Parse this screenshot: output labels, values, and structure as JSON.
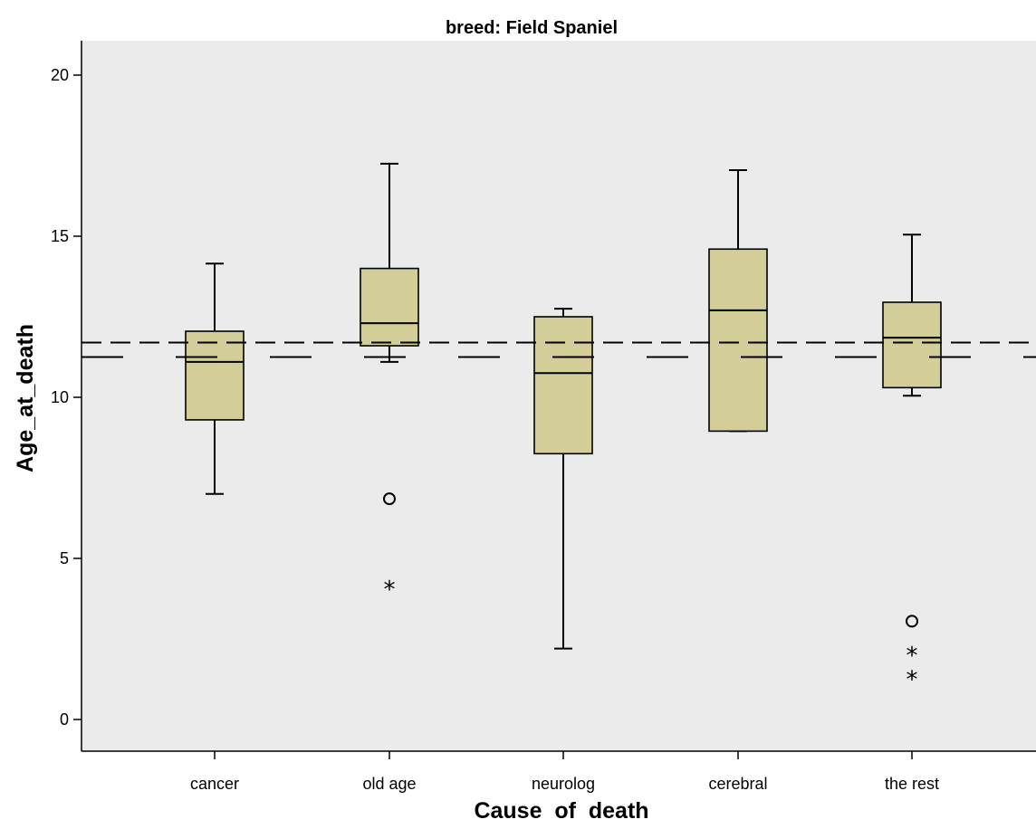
{
  "chart_data": {
    "type": "boxplot",
    "title": "breed: Field Spaniel",
    "xlabel": "Cause  of  death",
    "ylabel": "Age_at_death",
    "ylim": [
      -1,
      21
    ],
    "yticks": [
      0,
      5,
      10,
      15,
      20
    ],
    "grid": false,
    "colors": {
      "box_fill": "#d3cd98",
      "plot_bg": "#ebebeb",
      "line": "#000000"
    },
    "categories": [
      "cancer",
      "old age",
      "neurolog",
      "cerebral",
      "the rest"
    ],
    "boxes": [
      {
        "category": "cancer",
        "min": 7.0,
        "q1": 9.3,
        "median": 11.1,
        "q3": 12.05,
        "max": 14.15,
        "outliers": [],
        "extremes": []
      },
      {
        "category": "old age",
        "min": 11.1,
        "q1": 11.6,
        "median": 12.3,
        "q3": 14.0,
        "max": 17.25,
        "outliers": [
          6.85
        ],
        "extremes": [
          4.1
        ]
      },
      {
        "category": "neurolog",
        "min": 2.2,
        "q1": 8.25,
        "median": 10.75,
        "q3": 12.5,
        "max": 12.75,
        "outliers": [],
        "extremes": []
      },
      {
        "category": "cerebral",
        "min": 8.95,
        "q1": 8.95,
        "median": 12.7,
        "q3": 14.6,
        "max": 17.05,
        "outliers": [],
        "extremes": []
      },
      {
        "category": "the rest",
        "min": 10.05,
        "q1": 10.3,
        "median": 11.85,
        "q3": 12.95,
        "max": 15.05,
        "outliers": [
          3.05
        ],
        "extremes": [
          2.05,
          1.3
        ]
      }
    ],
    "reference_lines": [
      {
        "style": "short-dash",
        "y": 11.7
      },
      {
        "style": "long-dash",
        "y": 11.25
      }
    ]
  }
}
